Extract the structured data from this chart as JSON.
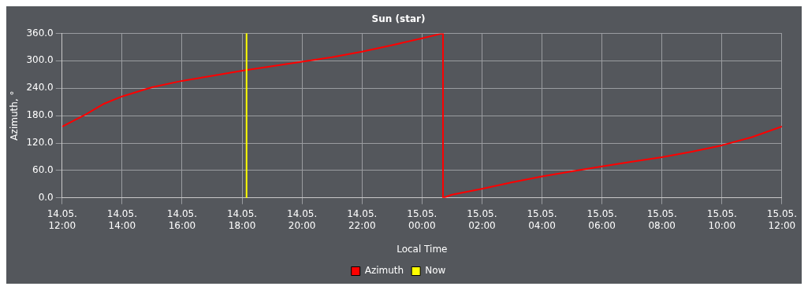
{
  "chart_data": {
    "type": "line",
    "title": "Sun (star)",
    "xlabel": "Local Time",
    "ylabel": "Azimuth, °",
    "xlim": [
      "--05-14T12:00",
      "--05-15T12:00"
    ],
    "xticks": [
      {
        "value": "--05-14T12:00",
        "label": "14.05. 12:00"
      },
      {
        "value": "--05-14T14:00",
        "label": "14.05. 14:00"
      },
      {
        "value": "--05-14T16:00",
        "label": "14.05. 16:00"
      },
      {
        "value": "--05-14T18:00",
        "label": "14.05. 18:00"
      },
      {
        "value": "--05-14T20:00",
        "label": "14.05. 20:00"
      },
      {
        "value": "--05-14T22:00",
        "label": "14.05. 22:00"
      },
      {
        "value": "--05-15T00:00",
        "label": "15.05. 00:00"
      },
      {
        "value": "--05-15T02:00",
        "label": "15.05. 02:00"
      },
      {
        "value": "--05-15T04:00",
        "label": "15.05. 04:00"
      },
      {
        "value": "--05-15T06:00",
        "label": "15.05. 06:00"
      },
      {
        "value": "--05-15T08:00",
        "label": "15.05. 08:00"
      },
      {
        "value": "--05-15T10:00",
        "label": "15.05. 10:00"
      },
      {
        "value": "--05-15T12:00",
        "label": "15.05. 12:00"
      }
    ],
    "ylim": [
      0,
      360
    ],
    "yticks": [
      {
        "value": 0,
        "label": "0.0"
      },
      {
        "value": 60,
        "label": "60.0"
      },
      {
        "value": 120,
        "label": "120.0"
      },
      {
        "value": 180,
        "label": "180.0"
      },
      {
        "value": 240,
        "label": "240.0"
      },
      {
        "value": 300,
        "label": "300.0"
      },
      {
        "value": 360,
        "label": "360.0"
      }
    ],
    "series": [
      {
        "name": "Azimuth",
        "color": "#ff0000",
        "x": [
          "--05-14T12:00",
          "--05-14T12:48",
          "--05-14T13:24",
          "--05-14T14:00",
          "--05-14T15:00",
          "--05-14T16:00",
          "--05-14T17:00",
          "--05-14T18:00",
          "--05-14T19:00",
          "--05-14T20:00",
          "--05-14T21:00",
          "--05-14T22:00",
          "--05-14T23:00",
          "--05-15T00:00",
          "--05-15T00:42",
          "--05-15T00:42",
          "--05-15T01:00",
          "--05-15T02:00",
          "--05-15T03:00",
          "--05-15T04:00",
          "--05-15T05:00",
          "--05-15T06:00",
          "--05-15T07:00",
          "--05-15T08:00",
          "--05-15T09:00",
          "--05-15T10:00",
          "--05-15T11:00",
          "--05-15T12:00"
        ],
        "values": [
          156,
          183,
          206,
          222,
          242,
          256,
          267,
          278,
          288,
          298,
          308,
          320,
          334,
          349,
          360,
          0,
          7,
          20,
          34,
          47,
          58,
          69,
          79,
          89,
          101,
          115,
          133,
          156
        ]
      }
    ],
    "ref_lines": [
      {
        "axis": "x",
        "value": "--05-14T18:09",
        "label": "Now",
        "color": "#ffff00"
      }
    ],
    "grid": true,
    "legend": "bottom",
    "marker": "none",
    "line_style": "solid"
  }
}
